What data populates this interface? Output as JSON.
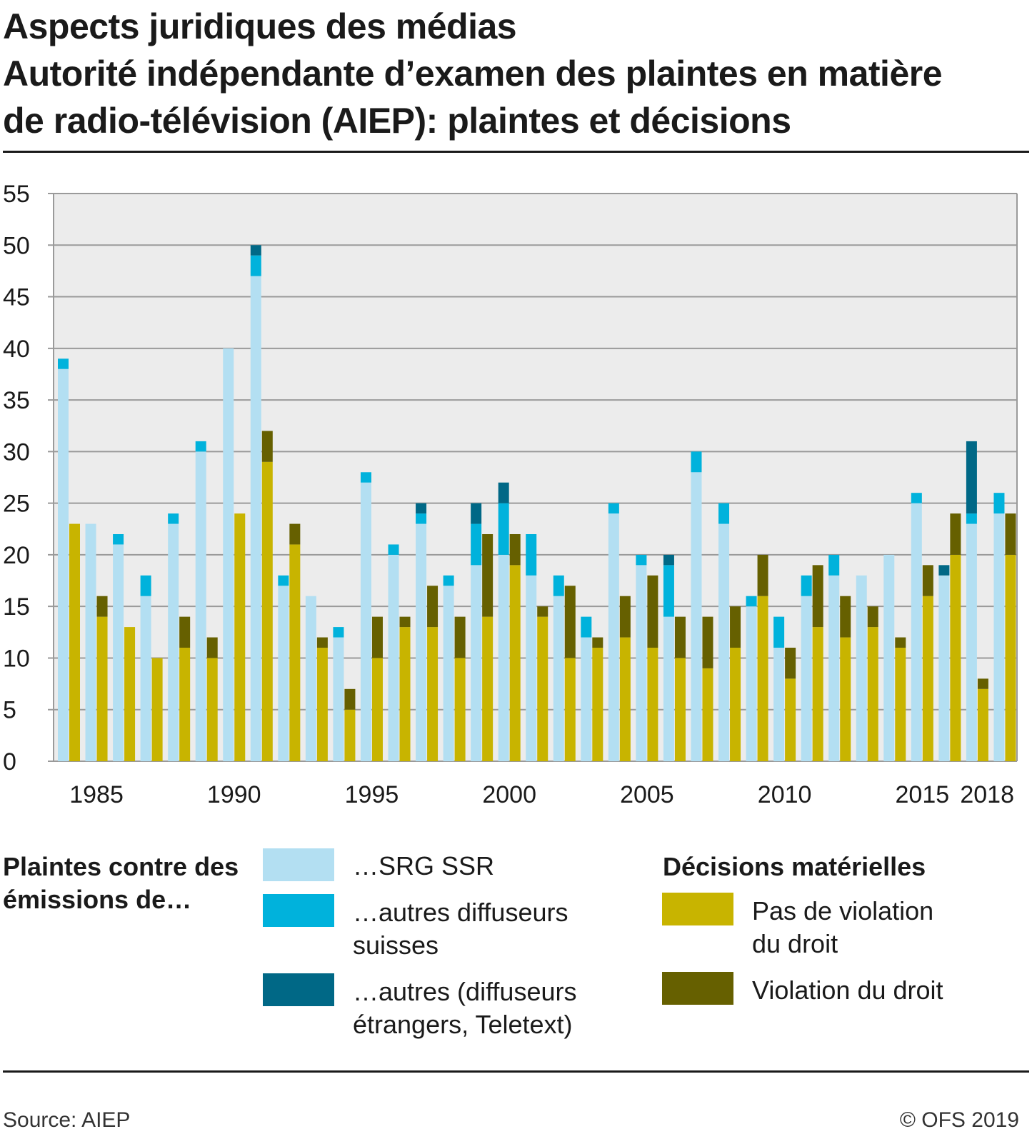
{
  "title": {
    "line1": "Aspects juridiques des médias",
    "line2": "Autorité indépendante d’examen des plaintes en matière",
    "line3": "de radio-télévision (AIEP): plaintes et décisions"
  },
  "legend": {
    "group1_title": "Plaintes contre des émissions de…",
    "group1_items": [
      {
        "label": "…SRG SSR",
        "color": "#b3dff2"
      },
      {
        "label": "…autres diffuseurs suisses",
        "color": "#00b2dc"
      },
      {
        "label": "…autres (diffuseurs étrangers, Teletext)",
        "color": "#006886"
      }
    ],
    "group2_title": "Décisions matérielles",
    "group2_items": [
      {
        "label": "Pas de violation du droit",
        "color": "#c8b400"
      },
      {
        "label": "Violation du droit",
        "color": "#666000"
      }
    ]
  },
  "footer": {
    "source": "Source: AIEP",
    "copyright": "© OFS 2019"
  },
  "chart_data": {
    "type": "bar",
    "subtype": "grouped stacked bar",
    "title": "Autorité indépendante d’examen des plaintes en matière de radio-télévision (AIEP): plaintes et décisions",
    "ylim": [
      0,
      55
    ],
    "yticks": [
      0,
      5,
      10,
      15,
      20,
      25,
      30,
      35,
      40,
      45,
      50,
      55
    ],
    "xtick_labels": [
      "1985",
      "1990",
      "1995",
      "2000",
      "2005",
      "2010",
      "2015",
      "2018"
    ],
    "grid": true,
    "categories": [
      1984,
      1985,
      1986,
      1987,
      1988,
      1989,
      1990,
      1991,
      1992,
      1993,
      1994,
      1995,
      1996,
      1997,
      1998,
      1999,
      2000,
      2001,
      2002,
      2003,
      2004,
      2005,
      2006,
      2007,
      2008,
      2009,
      2010,
      2011,
      2012,
      2013,
      2014,
      2015,
      2016,
      2017,
      2018
    ],
    "stacks": [
      {
        "name": "Plaintes contre des émissions de…",
        "series": [
          {
            "name": "…SRG SSR",
            "color": "#b3dff2",
            "values": [
              38,
              23,
              21,
              16,
              23,
              30,
              40,
              47,
              17,
              16,
              12,
              27,
              20,
              23,
              17,
              19,
              20,
              18,
              16,
              12,
              24,
              19,
              14,
              28,
              23,
              15,
              11,
              16,
              18,
              18,
              20,
              25,
              18,
              23,
              24
            ]
          },
          {
            "name": "…autres diffuseurs suisses",
            "color": "#00b2dc",
            "values": [
              1,
              0,
              1,
              2,
              1,
              1,
              0,
              2,
              1,
              0,
              1,
              1,
              1,
              1,
              1,
              4,
              5,
              4,
              2,
              2,
              1,
              1,
              5,
              2,
              2,
              1,
              3,
              2,
              2,
              0,
              0,
              1,
              0,
              1,
              2
            ]
          },
          {
            "name": "…autres (diffuseurs étrangers, Teletext)",
            "color": "#006886",
            "values": [
              0,
              0,
              0,
              0,
              0,
              0,
              0,
              1,
              0,
              0,
              0,
              0,
              0,
              1,
              0,
              2,
              2,
              0,
              0,
              0,
              0,
              0,
              1,
              0,
              0,
              0,
              0,
              0,
              0,
              0,
              0,
              0,
              1,
              7,
              0
            ]
          }
        ]
      },
      {
        "name": "Décisions matérielles",
        "series": [
          {
            "name": "Pas de violation du droit",
            "color": "#c8b400",
            "values": [
              23,
              14,
              13,
              10,
              11,
              10,
              24,
              29,
              21,
              11,
              5,
              10,
              13,
              13,
              10,
              14,
              19,
              14,
              10,
              11,
              12,
              11,
              10,
              9,
              11,
              16,
              8,
              13,
              12,
              13,
              11,
              16,
              20,
              7,
              20
            ]
          },
          {
            "name": "Violation du droit",
            "color": "#666000",
            "values": [
              0,
              2,
              0,
              0,
              3,
              2,
              0,
              3,
              2,
              1,
              2,
              4,
              1,
              4,
              4,
              8,
              3,
              1,
              7,
              1,
              4,
              7,
              4,
              5,
              4,
              4,
              3,
              6,
              4,
              2,
              1,
              3,
              4,
              1,
              4
            ]
          }
        ]
      }
    ]
  }
}
